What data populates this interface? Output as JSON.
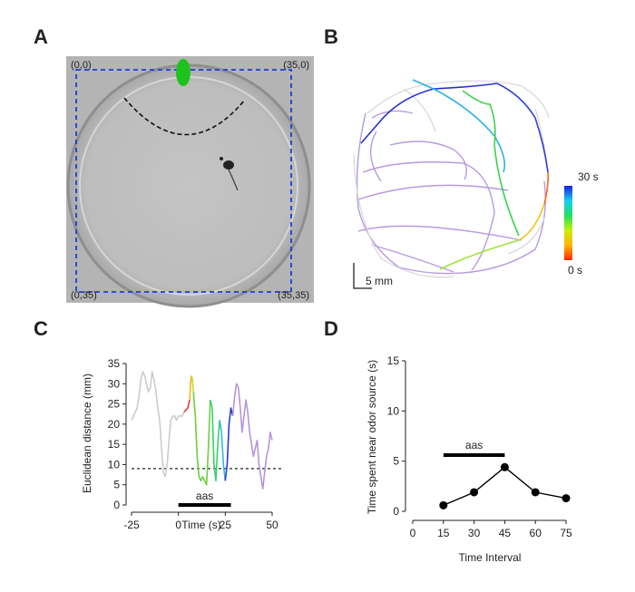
{
  "panels": {
    "a": {
      "letter": "A",
      "corners": {
        "tl": "(0,0)",
        "tr": "(35,0)",
        "bl": "(0,35)",
        "br": "(35,35)"
      }
    },
    "b": {
      "letter": "B",
      "colorbar_top": "30 s",
      "colorbar_bottom": "0 s",
      "scale_label": "5 mm"
    }
  },
  "chart_data": [
    {
      "panel": "C",
      "type": "line",
      "xlabel": "Time (s)",
      "ylabel": "Euclidean distance (mm)",
      "xlim": [
        -25,
        50
      ],
      "ylim": [
        0,
        35
      ],
      "xticks": [
        -25,
        0,
        25,
        50
      ],
      "yticks": [
        0,
        5,
        10,
        15,
        20,
        25,
        30,
        35
      ],
      "threshold": 9,
      "stimulus": {
        "label": "aas",
        "start": 0,
        "end": 28
      },
      "series": [
        {
          "color": "#c9cdcd",
          "x": [
            -25,
            -24,
            -22,
            -21,
            -20,
            -19,
            -18,
            -17,
            -16,
            -15,
            -14,
            -13,
            -12,
            -11,
            -10,
            -9,
            -8,
            -7,
            -6,
            -5,
            -4,
            -3,
            -2,
            -1,
            0,
            1,
            2,
            3
          ],
          "y": [
            21,
            22,
            24,
            27,
            31,
            33,
            32,
            30,
            28,
            29,
            33,
            31,
            28,
            24,
            21,
            14,
            8,
            7,
            10,
            16,
            21,
            22,
            22,
            21,
            22,
            22,
            22,
            23
          ]
        },
        {
          "color": "#e8392b",
          "x": [
            3,
            4,
            5,
            6
          ],
          "y": [
            23,
            23.5,
            24,
            26
          ]
        },
        {
          "color": "#f5b21b",
          "x": [
            6,
            6.5,
            7
          ],
          "y": [
            26,
            30,
            32
          ]
        },
        {
          "color": "#c8d925",
          "x": [
            7,
            7.5,
            8
          ],
          "y": [
            32,
            31,
            28
          ]
        },
        {
          "color": "#6cd13a",
          "x": [
            8,
            9,
            10,
            11,
            12,
            13,
            14,
            15,
            16,
            17
          ],
          "y": [
            28,
            22,
            12,
            7,
            6,
            7,
            6,
            5,
            14,
            26
          ]
        },
        {
          "color": "#33d36a",
          "x": [
            17,
            18,
            19,
            20,
            21,
            22
          ],
          "y": [
            26,
            24,
            10,
            6,
            15,
            21
          ]
        },
        {
          "color": "#2fbce0",
          "x": [
            22,
            23,
            24,
            25
          ],
          "y": [
            21,
            18,
            10,
            6
          ]
        },
        {
          "color": "#2a3fc8",
          "x": [
            25,
            26,
            27,
            28,
            29
          ],
          "y": [
            6,
            10,
            20,
            24,
            22
          ]
        },
        {
          "color": "#b794db",
          "x": [
            29,
            30,
            31,
            32,
            33,
            34,
            35,
            36,
            37,
            38,
            39,
            40,
            41,
            42,
            43,
            44,
            45,
            46,
            47,
            48,
            49,
            50
          ],
          "y": [
            22,
            27,
            30,
            29,
            24,
            18,
            22,
            26,
            23,
            18,
            15,
            12,
            14,
            16,
            10,
            7,
            4,
            8,
            12,
            14,
            18,
            16
          ]
        }
      ]
    },
    {
      "panel": "D",
      "type": "line",
      "xlabel": "Time Interval",
      "ylabel": "Time spent near odor source (s)",
      "xlim": [
        0,
        75
      ],
      "ylim": [
        0,
        15
      ],
      "xticks": [
        0,
        15,
        30,
        45,
        60,
        75
      ],
      "yticks": [
        0,
        5,
        10,
        15
      ],
      "stimulus": {
        "label": "aas",
        "start": 15,
        "end": 45
      },
      "series": [
        {
          "x": [
            15,
            30,
            45,
            60,
            75
          ],
          "y": [
            0.6,
            1.9,
            4.4,
            1.9,
            1.3
          ]
        }
      ]
    }
  ],
  "panel_c_letter": "C",
  "panel_d_letter": "D"
}
